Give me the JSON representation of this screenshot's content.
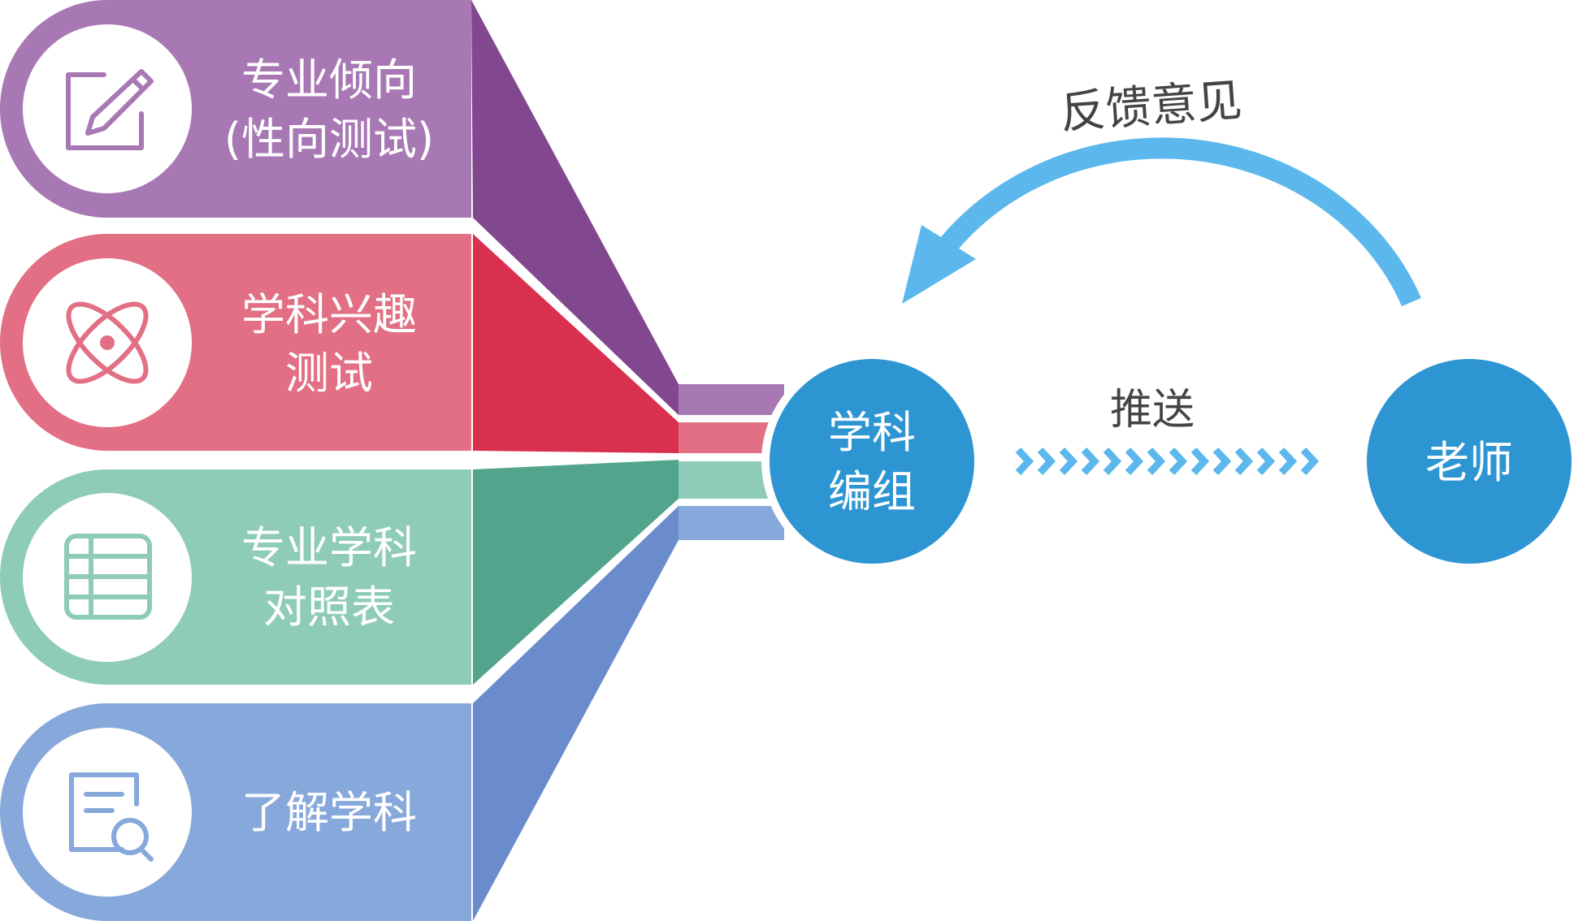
{
  "colors": {
    "purple_light": "#a878b4",
    "purple_dark": "#82488f",
    "red_light": "#e26f84",
    "red_dark": "#da3050",
    "green_light": "#8ecbb8",
    "green_dark": "#52a58c",
    "blue_light": "#87a8da",
    "blue_dark": "#6b8ccc",
    "node_blue": "#2e95d3",
    "arrow_blue": "#5cb8ec",
    "text_dark": "#444444",
    "white": "#ffffff"
  },
  "categories": [
    {
      "icon": "edit-pencil-icon",
      "lines": [
        "专业倾向",
        "(性向测试)"
      ]
    },
    {
      "icon": "atom-icon",
      "lines": [
        "学科兴趣",
        "测试"
      ]
    },
    {
      "icon": "table-grid-icon",
      "lines": [
        "专业学科",
        "对照表"
      ]
    },
    {
      "icon": "document-search-icon",
      "lines": [
        "了解学科"
      ]
    }
  ],
  "hub": {
    "lines": [
      "学科",
      "编组"
    ]
  },
  "teacher": {
    "label": "老师"
  },
  "push": {
    "label": "推送"
  },
  "feedback": {
    "label": "反馈意见"
  }
}
